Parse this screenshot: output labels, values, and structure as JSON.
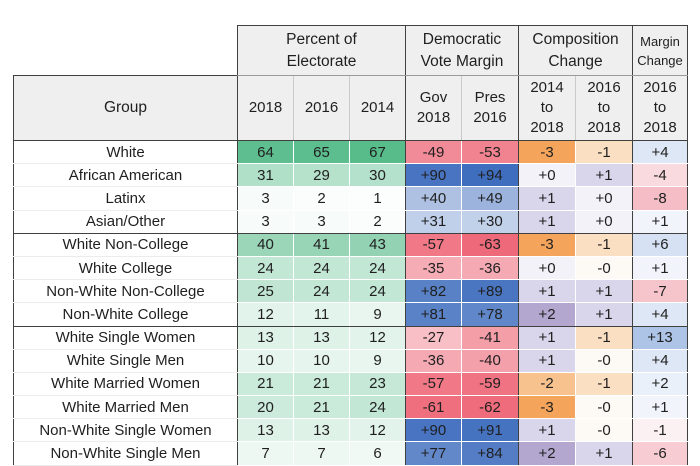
{
  "chart_data": {
    "type": "table",
    "header": {
      "group_col": "Group",
      "groups": [
        {
          "label": "Percent of\nElectorate",
          "sub": [
            "2018",
            "2016",
            "2014"
          ]
        },
        {
          "label": "Democratic\nVote Margin",
          "sub": [
            "Gov\n2018",
            "Pres\n2016"
          ]
        },
        {
          "label": "Composition\nChange",
          "sub": [
            "2014\nto\n2018",
            "2016\nto\n2018"
          ]
        },
        {
          "label": "Margin\nChange",
          "sub": [
            "2016\nto\n2018"
          ]
        }
      ]
    },
    "section_ends": [
      3,
      7
    ],
    "rows": [
      {
        "group": "White",
        "pct": [
          "64",
          "65",
          "67"
        ],
        "margin": [
          "-49",
          "-53"
        ],
        "comp": [
          "-3",
          "-1"
        ],
        "margin_change": "+4",
        "colors": {
          "pct": [
            "#5FBE8F",
            "#5CBD8E",
            "#57BB8A"
          ],
          "margin": [
            "#F28B98",
            "#F1828F"
          ],
          "comp": [
            "#F5A45C",
            "#FBDFC2"
          ],
          "margin_change": "#DEE7F5"
        }
      },
      {
        "group": "African American",
        "pct": [
          "31",
          "29",
          "30"
        ],
        "margin": [
          "+90",
          "+94"
        ],
        "comp": [
          "+0",
          "+1"
        ],
        "margin_change": "-4",
        "colors": {
          "pct": [
            "#B1E0C9",
            "#B6E2CC",
            "#B4E1CB"
          ],
          "margin": [
            "#4874C1",
            "#406EBE"
          ],
          "comp": [
            "#F3F2F9",
            "#D9D5EA"
          ],
          "margin_change": "#F9DBDF"
        }
      },
      {
        "group": "Latinx",
        "pct": [
          "3",
          "2",
          "1"
        ],
        "margin": [
          "+40",
          "+49"
        ],
        "comp": [
          "+1",
          "+0"
        ],
        "margin_change": "-8",
        "colors": {
          "pct": [
            "#F7FCFA",
            "#FAFDFB",
            "#FCFEFD"
          ],
          "margin": [
            "#AEC1E3",
            "#9BB3DD"
          ],
          "comp": [
            "#D9D5EA",
            "#F3F2F9"
          ],
          "margin_change": "#F5BEC6"
        }
      },
      {
        "group": "Asian/Other",
        "pct": [
          "3",
          "3",
          "2"
        ],
        "margin": [
          "+31",
          "+30"
        ],
        "comp": [
          "+1",
          "+0"
        ],
        "margin_change": "+1",
        "colors": {
          "pct": [
            "#F7FCFA",
            "#F7FCFA",
            "#FAFDFB"
          ],
          "margin": [
            "#C0CFEA",
            "#C2D1EA"
          ],
          "comp": [
            "#D9D5EA",
            "#F3F2F9"
          ],
          "margin_change": "#F1F4FB"
        }
      },
      {
        "group": "White Non-College",
        "pct": [
          "40",
          "41",
          "43"
        ],
        "margin": [
          "-57",
          "-63"
        ],
        "comp": [
          "-3",
          "-1"
        ],
        "margin_change": "+6",
        "colors": {
          "pct": [
            "#9BD6B9",
            "#98D5B7",
            "#93D3B4"
          ],
          "margin": [
            "#F07887",
            "#EE6A7A"
          ],
          "comp": [
            "#F5A45C",
            "#FBDFC2"
          ],
          "margin_change": "#D6E1F3"
        }
      },
      {
        "group": "White College",
        "pct": [
          "24",
          "24",
          "24"
        ],
        "margin": [
          "-35",
          "-36"
        ],
        "comp": [
          "+0",
          "-0"
        ],
        "margin_change": "+1",
        "colors": {
          "pct": [
            "#C3E7D5",
            "#C3E7D5",
            "#C3E7D5"
          ],
          "margin": [
            "#F6ACB5",
            "#F5AAB3"
          ],
          "comp": [
            "#F3F2F9",
            "#FDFAF6"
          ],
          "margin_change": "#F1F4FB"
        }
      },
      {
        "group": "Non-White Non-College",
        "pct": [
          "25",
          "24",
          "24"
        ],
        "margin": [
          "+82",
          "+89"
        ],
        "comp": [
          "+1",
          "+1"
        ],
        "margin_change": "-7",
        "colors": {
          "pct": [
            "#C0E6D3",
            "#C3E7D5",
            "#C3E7D5"
          ],
          "margin": [
            "#5881C6",
            "#4A76C1"
          ],
          "comp": [
            "#D9D5EA",
            "#D9D5EA"
          ],
          "margin_change": "#F6C5CC"
        }
      },
      {
        "group": "Non-White College",
        "pct": [
          "12",
          "11",
          "9"
        ],
        "margin": [
          "+81",
          "+78"
        ],
        "comp": [
          "+2",
          "+1"
        ],
        "margin_change": "+4",
        "colors": {
          "pct": [
            "#E1F3EA",
            "#E3F4EC",
            "#E8F6EF"
          ],
          "margin": [
            "#5A82C7",
            "#6087C9"
          ],
          "comp": [
            "#B3A6CF",
            "#D9D5EA"
          ],
          "margin_change": "#DEE7F5"
        }
      },
      {
        "group": "White Single Women",
        "pct": [
          "13",
          "13",
          "12"
        ],
        "margin": [
          "-27",
          "-41"
        ],
        "comp": [
          "+1",
          "-1"
        ],
        "margin_change": "+13",
        "colors": {
          "pct": [
            "#DEF2E8",
            "#DEF2E8",
            "#E1F3EA"
          ],
          "margin": [
            "#F8BFC6",
            "#F49EA8"
          ],
          "comp": [
            "#D9D5EA",
            "#FBDFC2"
          ],
          "margin_change": "#AEC4E6"
        }
      },
      {
        "group": "White Single Men",
        "pct": [
          "10",
          "10",
          "9"
        ],
        "margin": [
          "-36",
          "-40"
        ],
        "comp": [
          "+1",
          "-0"
        ],
        "margin_change": "+4",
        "colors": {
          "pct": [
            "#E6F5EE",
            "#E6F5EE",
            "#E8F6EF"
          ],
          "margin": [
            "#F5AAB3",
            "#F4A0AB"
          ],
          "comp": [
            "#D9D5EA",
            "#FDFAF6"
          ],
          "margin_change": "#DEE7F5"
        }
      },
      {
        "group": "White Married Women",
        "pct": [
          "21",
          "21",
          "23"
        ],
        "margin": [
          "-57",
          "-59"
        ],
        "comp": [
          "-2",
          "-1"
        ],
        "margin_change": "+2",
        "colors": {
          "pct": [
            "#CAEADA",
            "#CAEADA",
            "#C5E8D7"
          ],
          "margin": [
            "#F07887",
            "#EF7382"
          ],
          "comp": [
            "#F8C28F",
            "#FBDFC2"
          ],
          "margin_change": "#EAF0F9"
        }
      },
      {
        "group": "White Married Men",
        "pct": [
          "20",
          "21",
          "24"
        ],
        "margin": [
          "-61",
          "-62"
        ],
        "comp": [
          "-3",
          "-0"
        ],
        "margin_change": "+1",
        "colors": {
          "pct": [
            "#CDEBDC",
            "#CAEADA",
            "#C3E7D5"
          ],
          "margin": [
            "#EF6F7E",
            "#EE6C7C"
          ],
          "comp": [
            "#F5A45C",
            "#FDFAF6"
          ],
          "margin_change": "#F1F4FB"
        }
      },
      {
        "group": "Non-White Single Women",
        "pct": [
          "13",
          "13",
          "12"
        ],
        "margin": [
          "+90",
          "+91"
        ],
        "comp": [
          "+1",
          "-0"
        ],
        "margin_change": "-1",
        "colors": {
          "pct": [
            "#DEF2E8",
            "#DEF2E8",
            "#E1F3EA"
          ],
          "margin": [
            "#4874C1",
            "#4673C0"
          ],
          "comp": [
            "#D9D5EA",
            "#FDFAF6"
          ],
          "margin_change": "#FCF1F2"
        }
      },
      {
        "group": "Non-White Single Men",
        "pct": [
          "7",
          "7",
          "6"
        ],
        "margin": [
          "+77",
          "+84"
        ],
        "comp": [
          "+2",
          "+1"
        ],
        "margin_change": "-6",
        "colors": {
          "pct": [
            "#EEF8F3",
            "#EEF8F3",
            "#F0F9F4"
          ],
          "margin": [
            "#6388CA",
            "#547DC5"
          ],
          "comp": [
            "#B3A6CF",
            "#D9D5EA"
          ],
          "margin_change": "#F7CCD2"
        }
      }
    ]
  },
  "style": {
    "header_bg": "#efefef",
    "border_dark": "#404040",
    "text_color": "#1f1f1f",
    "positive_color": "#406EBE",
    "negative_color": "#EE6A7A",
    "electorate_color": "#57BB8A",
    "composition_positive_color": "#B3A6CF",
    "composition_negative_color": "#F5A45C"
  }
}
